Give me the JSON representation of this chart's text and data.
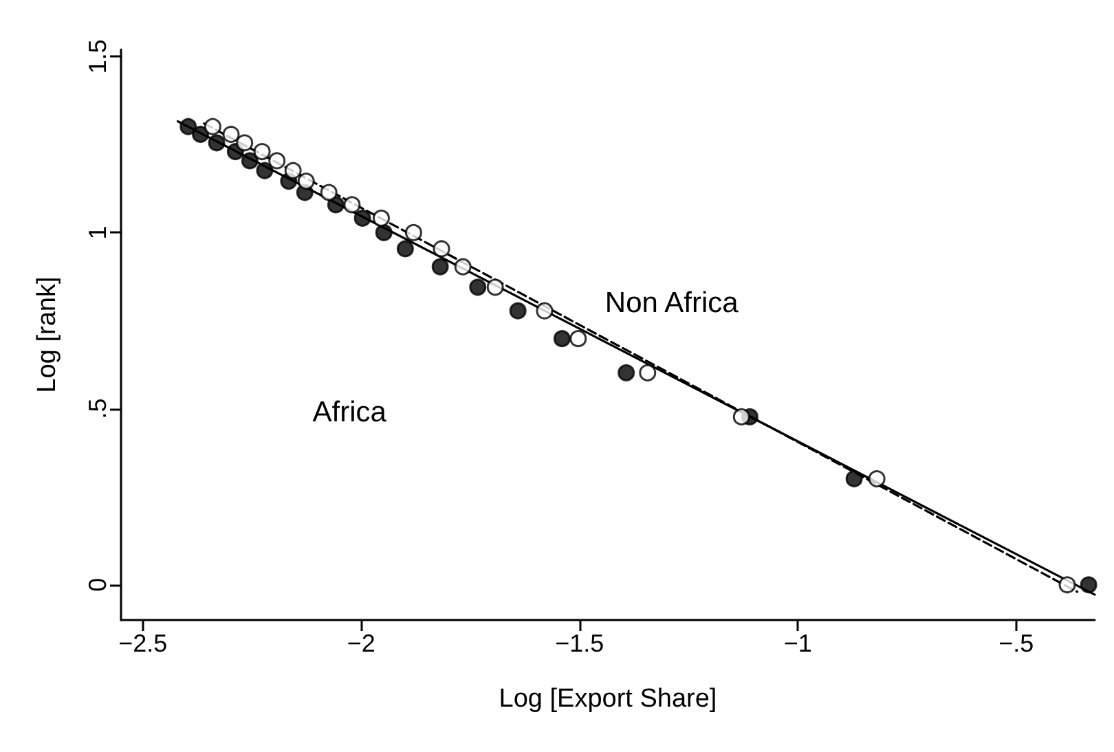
{
  "chart_data": {
    "type": "scatter",
    "xlabel": "Log [Export Share]",
    "ylabel": "Log [rank]",
    "xlim": [
      -2.55,
      -0.32
    ],
    "ylim": [
      -0.1,
      1.52
    ],
    "xticks": [
      {
        "value": -2.5,
        "label": "−2.5"
      },
      {
        "value": -2,
        "label": "−2"
      },
      {
        "value": -1.5,
        "label": "−1.5"
      },
      {
        "value": -1,
        "label": "−1"
      },
      {
        "value": -0.5,
        "label": "−.5"
      }
    ],
    "yticks": [
      0,
      {
        "value": 0.5,
        "label": ".5"
      },
      1,
      1.5
    ],
    "grid": false,
    "marker": "circle",
    "series": [
      {
        "color": "#000000",
        "x": [
          -2.396,
          -2.368,
          -2.331,
          -2.288,
          -2.255,
          -2.221,
          -2.166,
          -2.129,
          -2.058,
          -1.997,
          -1.948,
          -1.899,
          -1.819,
          -1.733,
          -1.641,
          -1.54,
          -1.393,
          -1.11,
          -0.871,
          -0.334
        ],
        "values": [
          1.301,
          1.279,
          1.255,
          1.23,
          1.204,
          1.176,
          1.146,
          1.114,
          1.079,
          1.041,
          1,
          0.954,
          0.903,
          0.845,
          0.778,
          0.699,
          0.602,
          0.477,
          0.301,
          0
        ]
      },
      {
        "color": "#ffffff",
        "x": [
          -2.34,
          -2.298,
          -2.267,
          -2.227,
          -2.193,
          -2.156,
          -2.126,
          -2.074,
          -2.021,
          -1.954,
          -1.88,
          -1.816,
          -1.767,
          -1.693,
          -1.58,
          -1.503,
          -1.344,
          -1.129,
          -0.819,
          -0.383
        ],
        "values": [
          1.301,
          1.279,
          1.255,
          1.23,
          1.204,
          1.176,
          1.146,
          1.114,
          1.079,
          1.041,
          1,
          0.954,
          0.903,
          0.845,
          0.778,
          0.699,
          0.602,
          0.477,
          0.301,
          0
        ]
      },
      {
        "type": "line",
        "color": "#000000",
        "marker": "none",
        "line_style": "solid",
        "x": [
          -2.42,
          -0.32
        ],
        "values": [
          1.316,
          -0.028
        ]
      },
      {
        "type": "line",
        "color": "#000000",
        "marker": "none",
        "line_style": "dashed",
        "x": [
          -2.36,
          -0.36
        ],
        "values": [
          1.31,
          -0.02
        ]
      }
    ],
    "annotations": [
      "Non Africa",
      "Africa"
    ]
  }
}
